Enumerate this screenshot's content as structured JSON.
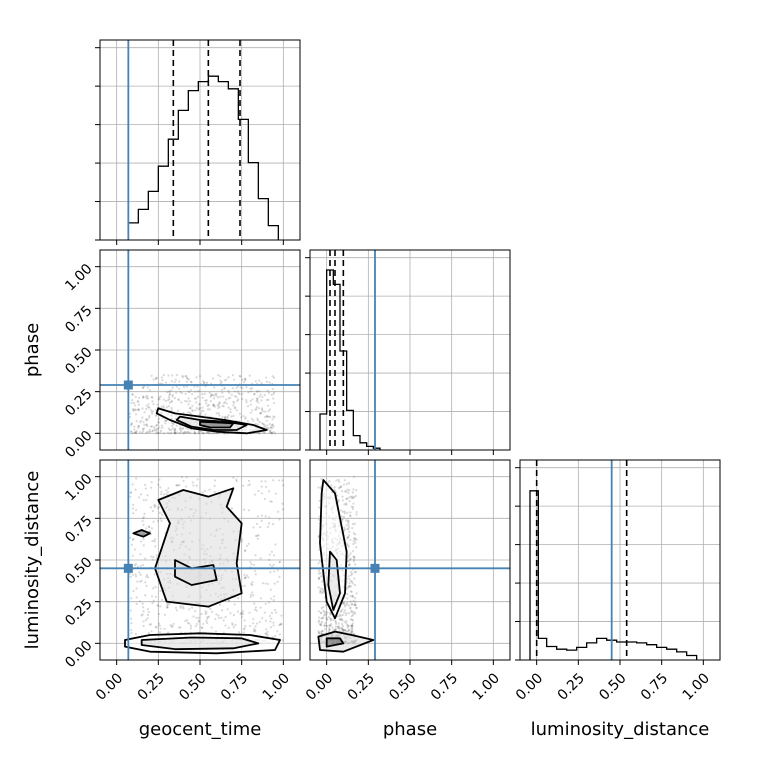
{
  "chart_data": {
    "type": "corner",
    "parameters": [
      "geocent_time",
      "phase",
      "luminosity_distance"
    ],
    "truths": {
      "geocent_time": 0.07,
      "phase": 0.29,
      "luminosity_distance": 0.45
    },
    "ticks": [
      0.0,
      0.25,
      0.5,
      0.75,
      1.0
    ],
    "tick_labels": [
      "0.00",
      "0.25",
      "0.50",
      "0.75",
      "1.00"
    ],
    "axis_range": [
      -0.1,
      1.1
    ],
    "grid": true,
    "colors": {
      "truth": "#4682b4",
      "hist": "#000000",
      "grid": "#b0b0b0",
      "points": "#666666"
    },
    "diagonal": [
      {
        "parameter": "geocent_time",
        "bin_edges": [
          0.07,
          0.13,
          0.19,
          0.25,
          0.31,
          0.37,
          0.43,
          0.49,
          0.55,
          0.61,
          0.67,
          0.73,
          0.79,
          0.85,
          0.91,
          0.97
        ],
        "counts": [
          0.095,
          0.17,
          0.27,
          0.41,
          0.56,
          0.72,
          0.83,
          0.88,
          0.91,
          0.88,
          0.84,
          0.67,
          0.43,
          0.23,
          0.08
        ],
        "quantiles": [
          0.34,
          0.55,
          0.74
        ]
      },
      {
        "parameter": "phase",
        "bin_edges": [
          -0.04,
          0.0,
          0.04,
          0.08,
          0.12,
          0.16,
          0.2,
          0.24,
          0.28,
          0.32
        ],
        "counts": [
          0.2,
          1.0,
          0.92,
          0.55,
          0.22,
          0.08,
          0.04,
          0.02,
          0.01
        ],
        "quantiles": [
          0.02,
          0.05,
          0.1
        ]
      },
      {
        "parameter": "luminosity_distance",
        "bin_edges": [
          -0.04,
          0.01,
          0.06,
          0.12,
          0.18,
          0.24,
          0.3,
          0.36,
          0.42,
          0.48,
          0.54,
          0.6,
          0.66,
          0.72,
          0.78,
          0.84,
          0.9,
          0.96
        ],
        "counts": [
          0.94,
          0.12,
          0.075,
          0.06,
          0.055,
          0.07,
          0.095,
          0.12,
          0.11,
          0.1,
          0.1,
          0.095,
          0.085,
          0.07,
          0.06,
          0.045,
          0.025
        ],
        "quantiles": [
          0.0,
          0.54
        ]
      }
    ],
    "pairs": [
      {
        "x": "geocent_time",
        "y": "phase",
        "contours": [
          [
            [
              0.25,
              0.15
            ],
            [
              0.35,
              0.12
            ],
            [
              0.5,
              0.1
            ],
            [
              0.65,
              0.08
            ],
            [
              0.82,
              0.05
            ],
            [
              0.9,
              0.02
            ],
            [
              0.78,
              0.0
            ],
            [
              0.6,
              0.01
            ],
            [
              0.45,
              0.03
            ],
            [
              0.32,
              0.08
            ],
            [
              0.24,
              0.12
            ]
          ],
          [
            [
              0.38,
              0.1
            ],
            [
              0.5,
              0.08
            ],
            [
              0.65,
              0.07
            ],
            [
              0.78,
              0.05
            ],
            [
              0.72,
              0.02
            ],
            [
              0.58,
              0.02
            ],
            [
              0.45,
              0.04
            ],
            [
              0.36,
              0.08
            ]
          ],
          [
            [
              0.5,
              0.07
            ],
            [
              0.6,
              0.065
            ],
            [
              0.7,
              0.06
            ],
            [
              0.68,
              0.035
            ],
            [
              0.56,
              0.035
            ],
            [
              0.5,
              0.05
            ]
          ]
        ],
        "scatter_region": {
          "x": [
            0.08,
            0.95
          ],
          "y": [
            0.0,
            0.35
          ]
        }
      },
      {
        "x": "geocent_time",
        "y": "luminosity_distance",
        "contours": [
          [
            [
              0.05,
              0.02
            ],
            [
              0.2,
              0.05
            ],
            [
              0.5,
              0.06
            ],
            [
              0.8,
              0.05
            ],
            [
              0.98,
              0.02
            ],
            [
              0.95,
              -0.04
            ],
            [
              0.6,
              -0.06
            ],
            [
              0.2,
              -0.05
            ],
            [
              0.05,
              -0.02
            ]
          ],
          [
            [
              0.15,
              0.02
            ],
            [
              0.45,
              0.035
            ],
            [
              0.75,
              0.03
            ],
            [
              0.85,
              0.0
            ],
            [
              0.7,
              -0.03
            ],
            [
              0.35,
              -0.035
            ],
            [
              0.15,
              -0.01
            ]
          ],
          [
            [
              0.25,
              0.86
            ],
            [
              0.4,
              0.92
            ],
            [
              0.55,
              0.88
            ],
            [
              0.7,
              0.93
            ],
            [
              0.66,
              0.82
            ],
            [
              0.75,
              0.72
            ],
            [
              0.72,
              0.48
            ],
            [
              0.75,
              0.3
            ],
            [
              0.55,
              0.22
            ],
            [
              0.3,
              0.25
            ],
            [
              0.23,
              0.45
            ],
            [
              0.32,
              0.72
            ],
            [
              0.25,
              0.86
            ]
          ],
          [
            [
              0.35,
              0.5
            ],
            [
              0.45,
              0.45
            ],
            [
              0.58,
              0.47
            ],
            [
              0.6,
              0.38
            ],
            [
              0.45,
              0.35
            ],
            [
              0.35,
              0.4
            ],
            [
              0.35,
              0.5
            ]
          ],
          [
            [
              0.1,
              0.66
            ],
            [
              0.15,
              0.68
            ],
            [
              0.2,
              0.66
            ],
            [
              0.16,
              0.64
            ]
          ]
        ],
        "scatter_region": {
          "x": [
            0.08,
            1.0
          ],
          "y": [
            0.0,
            1.0
          ]
        }
      },
      {
        "x": "phase",
        "y": "luminosity_distance",
        "contours": [
          [
            [
              -0.02,
              0.98
            ],
            [
              0.05,
              0.9
            ],
            [
              0.12,
              0.55
            ],
            [
              0.11,
              0.3
            ],
            [
              0.05,
              0.15
            ],
            [
              0.0,
              0.25
            ],
            [
              -0.04,
              0.6
            ],
            [
              -0.03,
              0.9
            ]
          ],
          [
            [
              0.02,
              0.55
            ],
            [
              0.06,
              0.5
            ],
            [
              0.08,
              0.3
            ],
            [
              0.04,
              0.2
            ],
            [
              0.01,
              0.35
            ]
          ],
          [
            [
              -0.05,
              0.04
            ],
            [
              0.05,
              0.07
            ],
            [
              0.15,
              0.05
            ],
            [
              0.28,
              0.02
            ],
            [
              0.1,
              -0.05
            ],
            [
              -0.04,
              -0.04
            ]
          ],
          [
            [
              0.0,
              0.03
            ],
            [
              0.08,
              0.03
            ],
            [
              0.1,
              0.0
            ],
            [
              0.0,
              -0.02
            ]
          ]
        ],
        "scatter_region": {
          "x": [
            -0.05,
            0.18
          ],
          "y": [
            0.0,
            1.0
          ]
        }
      }
    ]
  }
}
